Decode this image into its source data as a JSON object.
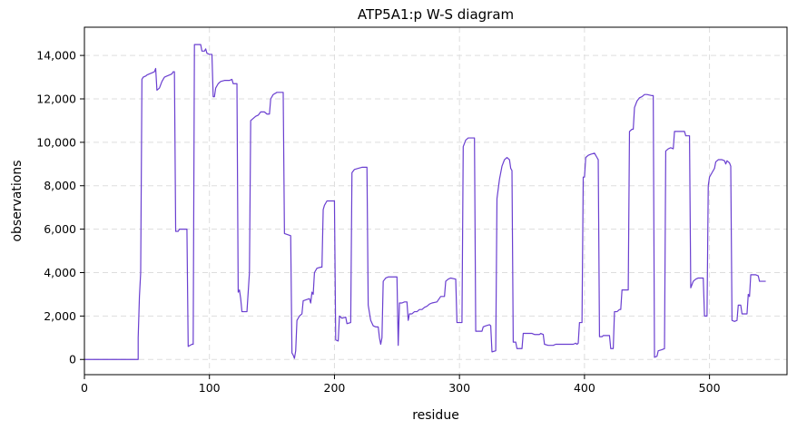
{
  "chart_data": {
    "type": "line",
    "title": "ATP5A1:p W-S diagram",
    "xlabel": "residue",
    "ylabel": "observations",
    "xlim": [
      0,
      562
    ],
    "ylim": [
      -700,
      15300
    ],
    "x_ticks": [
      0,
      100,
      200,
      300,
      400,
      500
    ],
    "x_tick_labels": [
      "0",
      "100",
      "200",
      "300",
      "400",
      "500"
    ],
    "y_ticks": [
      0,
      2000,
      4000,
      6000,
      8000,
      10000,
      12000,
      14000
    ],
    "y_tick_labels": [
      "0",
      "2,000",
      "4,000",
      "6,000",
      "8,000",
      "10,000",
      "12,000",
      "14,000"
    ],
    "grid": true,
    "line_color": "#6a3fd0",
    "series": [
      {
        "name": "",
        "points": [
          [
            0,
            0
          ],
          [
            43,
            0
          ],
          [
            43,
            1000
          ],
          [
            44,
            2900
          ],
          [
            45,
            4000
          ],
          [
            46,
            12900
          ],
          [
            47,
            13000
          ],
          [
            49,
            13050
          ],
          [
            50,
            13100
          ],
          [
            52,
            13150
          ],
          [
            54,
            13200
          ],
          [
            56,
            13250
          ],
          [
            57,
            13400
          ],
          [
            58,
            12400
          ],
          [
            60,
            12500
          ],
          [
            62,
            12800
          ],
          [
            64,
            13000
          ],
          [
            66,
            13050
          ],
          [
            68,
            13100
          ],
          [
            70,
            13150
          ],
          [
            71,
            13250
          ],
          [
            72,
            13250
          ],
          [
            73,
            5900
          ],
          [
            75,
            5900
          ],
          [
            76,
            6000
          ],
          [
            82,
            6000
          ],
          [
            83,
            600
          ],
          [
            86,
            700
          ],
          [
            87,
            700
          ],
          [
            88,
            14500
          ],
          [
            91,
            14500
          ],
          [
            93,
            14500
          ],
          [
            94,
            14200
          ],
          [
            96,
            14200
          ],
          [
            97,
            14300
          ],
          [
            98,
            14100
          ],
          [
            100,
            14050
          ],
          [
            102,
            14050
          ],
          [
            103,
            12100
          ],
          [
            104,
            12100
          ],
          [
            105,
            12500
          ],
          [
            107,
            12700
          ],
          [
            109,
            12800
          ],
          [
            112,
            12850
          ],
          [
            116,
            12850
          ],
          [
            118,
            12900
          ],
          [
            119,
            12700
          ],
          [
            122,
            12700
          ],
          [
            123,
            3100
          ],
          [
            124,
            3200
          ],
          [
            125,
            2800
          ],
          [
            126,
            2200
          ],
          [
            130,
            2200
          ],
          [
            132,
            4000
          ],
          [
            133,
            11000
          ],
          [
            135,
            11100
          ],
          [
            137,
            11200
          ],
          [
            139,
            11250
          ],
          [
            141,
            11400
          ],
          [
            144,
            11400
          ],
          [
            146,
            11300
          ],
          [
            148,
            11300
          ],
          [
            149,
            12000
          ],
          [
            151,
            12200
          ],
          [
            154,
            12300
          ],
          [
            159,
            12300
          ],
          [
            160,
            5800
          ],
          [
            165,
            5700
          ],
          [
            166,
            300
          ],
          [
            167,
            200
          ],
          [
            168,
            50
          ],
          [
            169,
            400
          ],
          [
            170,
            1800
          ],
          [
            172,
            2000
          ],
          [
            174,
            2100
          ],
          [
            175,
            2700
          ],
          [
            180,
            2800
          ],
          [
            181,
            2600
          ],
          [
            182,
            3100
          ],
          [
            183,
            3000
          ],
          [
            184,
            4000
          ],
          [
            186,
            4200
          ],
          [
            189,
            4250
          ],
          [
            190,
            4250
          ],
          [
            191,
            6900
          ],
          [
            192,
            7100
          ],
          [
            194,
            7300
          ],
          [
            200,
            7300
          ],
          [
            201,
            900
          ],
          [
            203,
            850
          ],
          [
            204,
            2000
          ],
          [
            206,
            1900
          ],
          [
            209,
            1950
          ],
          [
            210,
            1650
          ],
          [
            213,
            1700
          ],
          [
            214,
            8600
          ],
          [
            216,
            8750
          ],
          [
            219,
            8800
          ],
          [
            222,
            8850
          ],
          [
            226,
            8850
          ],
          [
            227,
            2500
          ],
          [
            229,
            1800
          ],
          [
            231,
            1550
          ],
          [
            233,
            1500
          ],
          [
            235,
            1500
          ],
          [
            236,
            1000
          ],
          [
            237,
            700
          ],
          [
            238,
            1000
          ],
          [
            239,
            3600
          ],
          [
            241,
            3750
          ],
          [
            243,
            3800
          ],
          [
            250,
            3800
          ],
          [
            251,
            650
          ],
          [
            252,
            2600
          ],
          [
            254,
            2600
          ],
          [
            256,
            2650
          ],
          [
            258,
            2650
          ],
          [
            259,
            1800
          ],
          [
            260,
            2100
          ],
          [
            262,
            2100
          ],
          [
            264,
            2200
          ],
          [
            266,
            2200
          ],
          [
            268,
            2300
          ],
          [
            270,
            2300
          ],
          [
            272,
            2400
          ],
          [
            274,
            2450
          ],
          [
            276,
            2550
          ],
          [
            278,
            2600
          ],
          [
            282,
            2650
          ],
          [
            285,
            2900
          ],
          [
            288,
            2900
          ],
          [
            289,
            3600
          ],
          [
            291,
            3700
          ],
          [
            293,
            3750
          ],
          [
            297,
            3700
          ],
          [
            298,
            1700
          ],
          [
            302,
            1700
          ],
          [
            303,
            9800
          ],
          [
            305,
            10100
          ],
          [
            307,
            10200
          ],
          [
            312,
            10200
          ],
          [
            313,
            1300
          ],
          [
            318,
            1300
          ],
          [
            319,
            1500
          ],
          [
            321,
            1550
          ],
          [
            324,
            1600
          ],
          [
            325,
            1550
          ],
          [
            326,
            350
          ],
          [
            329,
            400
          ],
          [
            330,
            7400
          ],
          [
            332,
            8300
          ],
          [
            334,
            8900
          ],
          [
            336,
            9200
          ],
          [
            338,
            9300
          ],
          [
            340,
            9200
          ],
          [
            341,
            8800
          ],
          [
            342,
            8700
          ],
          [
            343,
            800
          ],
          [
            345,
            800
          ],
          [
            346,
            500
          ],
          [
            350,
            500
          ],
          [
            351,
            1200
          ],
          [
            358,
            1200
          ],
          [
            360,
            1150
          ],
          [
            364,
            1150
          ],
          [
            365,
            1200
          ],
          [
            367,
            1150
          ],
          [
            368,
            700
          ],
          [
            371,
            650
          ],
          [
            375,
            650
          ],
          [
            377,
            700
          ],
          [
            380,
            700
          ],
          [
            382,
            700
          ],
          [
            385,
            700
          ],
          [
            388,
            700
          ],
          [
            391,
            700
          ],
          [
            393,
            750
          ],
          [
            394,
            700
          ],
          [
            395,
            750
          ],
          [
            396,
            1700
          ],
          [
            398,
            1700
          ],
          [
            399,
            8400
          ],
          [
            400,
            8400
          ],
          [
            401,
            9300
          ],
          [
            403,
            9400
          ],
          [
            405,
            9450
          ],
          [
            408,
            9500
          ],
          [
            410,
            9300
          ],
          [
            411,
            9200
          ],
          [
            412,
            1050
          ],
          [
            414,
            1050
          ],
          [
            415,
            1100
          ],
          [
            420,
            1100
          ],
          [
            421,
            500
          ],
          [
            423,
            500
          ],
          [
            424,
            2200
          ],
          [
            426,
            2200
          ],
          [
            428,
            2300
          ],
          [
            429,
            2300
          ],
          [
            430,
            3200
          ],
          [
            433,
            3200
          ],
          [
            435,
            3200
          ],
          [
            436,
            10500
          ],
          [
            438,
            10600
          ],
          [
            439,
            10600
          ],
          [
            440,
            11600
          ],
          [
            442,
            11900
          ],
          [
            444,
            12050
          ],
          [
            446,
            12100
          ],
          [
            448,
            12200
          ],
          [
            450,
            12200
          ],
          [
            454,
            12150
          ],
          [
            455,
            12150
          ],
          [
            456,
            100
          ],
          [
            458,
            150
          ],
          [
            459,
            400
          ],
          [
            462,
            450
          ],
          [
            464,
            500
          ],
          [
            465,
            9600
          ],
          [
            467,
            9700
          ],
          [
            469,
            9750
          ],
          [
            471,
            9700
          ],
          [
            472,
            10500
          ],
          [
            475,
            10500
          ],
          [
            480,
            10500
          ],
          [
            481,
            10300
          ],
          [
            484,
            10300
          ],
          [
            485,
            3300
          ],
          [
            487,
            3600
          ],
          [
            489,
            3700
          ],
          [
            491,
            3750
          ],
          [
            495,
            3750
          ],
          [
            496,
            2000
          ],
          [
            498,
            2000
          ],
          [
            499,
            8000
          ],
          [
            500,
            8400
          ],
          [
            502,
            8600
          ],
          [
            504,
            8800
          ],
          [
            505,
            9100
          ],
          [
            507,
            9200
          ],
          [
            510,
            9200
          ],
          [
            512,
            9150
          ],
          [
            513,
            9000
          ],
          [
            514,
            9150
          ],
          [
            516,
            9050
          ],
          [
            517,
            8900
          ],
          [
            518,
            1800
          ],
          [
            520,
            1750
          ],
          [
            522,
            1800
          ],
          [
            523,
            2500
          ],
          [
            525,
            2500
          ],
          [
            526,
            2100
          ],
          [
            530,
            2100
          ],
          [
            531,
            3000
          ],
          [
            532,
            2900
          ],
          [
            533,
            3900
          ],
          [
            537,
            3900
          ],
          [
            539,
            3850
          ],
          [
            540,
            3600
          ],
          [
            545,
            3600
          ]
        ]
      }
    ]
  }
}
